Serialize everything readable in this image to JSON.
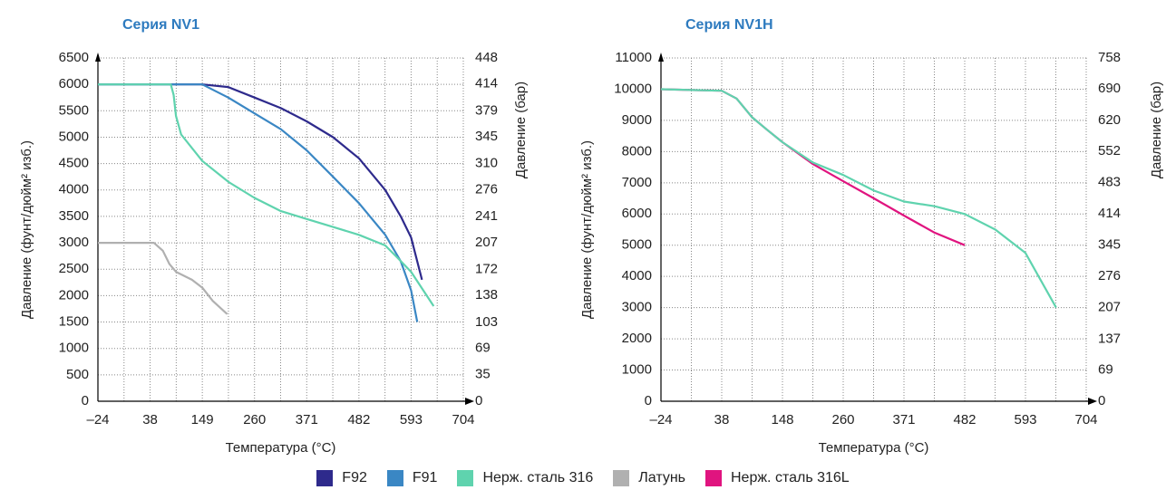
{
  "chart_data": [
    {
      "type": "line",
      "title": "Серия NV1",
      "ylabel": "Давление (фунт/дюйм² изб.)",
      "y2label": "Давление (бар)",
      "xlabel": "Температура (°C)",
      "xlim": [
        -24,
        704
      ],
      "xticks": [
        {
          "value": -24,
          "label": "–24"
        },
        38,
        149,
        260,
        371,
        482,
        593,
        704
      ],
      "ylim": [
        0,
        6500
      ],
      "yticks": [
        0,
        500,
        1000,
        1500,
        2000,
        2500,
        3000,
        3500,
        4000,
        4500,
        5000,
        5500,
        6000,
        6500
      ],
      "y2lim": [
        0,
        448
      ],
      "y2ticks": [
        0,
        35,
        69,
        103,
        138,
        172,
        207,
        241,
        276,
        310,
        345,
        379,
        414,
        448
      ],
      "grid": true,
      "series": [
        {
          "name": "F92",
          "color": "#2e2a8c",
          "x": [
            -24,
            149,
            204,
            260,
            316,
            371,
            427,
            482,
            538,
            571,
            593,
            616
          ],
          "values": [
            6000,
            6000,
            5950,
            5750,
            5550,
            5300,
            5000,
            4600,
            4000,
            3500,
            3100,
            2300
          ]
        },
        {
          "name": "F91",
          "color": "#3a87c4",
          "x": [
            -24,
            149,
            204,
            260,
            316,
            371,
            427,
            482,
            538,
            571,
            593,
            606
          ],
          "values": [
            6000,
            6000,
            5750,
            5450,
            5150,
            4750,
            4250,
            3750,
            3150,
            2650,
            2100,
            1500
          ]
        },
        {
          "name": "Нерж. сталь 316",
          "color": "#5fd3ae",
          "x": [
            -24,
            82,
            88,
            93,
            104,
            149,
            205,
            260,
            316,
            371,
            427,
            482,
            538,
            566,
            593,
            641
          ],
          "values": [
            6000,
            6000,
            5800,
            5400,
            5050,
            4550,
            4150,
            3850,
            3600,
            3450,
            3300,
            3150,
            2950,
            2700,
            2450,
            1800
          ]
        },
        {
          "name": "Латунь",
          "color": "#b0b0b0",
          "x": [
            -24,
            46,
            65,
            79,
            93,
            127,
            149,
            171,
            202
          ],
          "values": [
            3000,
            3000,
            2850,
            2600,
            2450,
            2300,
            2150,
            1900,
            1650
          ]
        }
      ]
    },
    {
      "type": "line",
      "title": "Серия NV1H",
      "ylabel": "Давление (фунт/дюйм² изб.)",
      "y2label": "Давление (бар)",
      "xlabel": "Температура (°C)",
      "xlim": [
        -24,
        704
      ],
      "xticks": [
        {
          "value": -24,
          "label": "–24"
        },
        38,
        148,
        260,
        371,
        482,
        593,
        704
      ],
      "ylim": [
        0,
        11000
      ],
      "yticks": [
        0,
        1000,
        2000,
        3000,
        4000,
        5000,
        6000,
        7000,
        8000,
        9000,
        10000,
        11000
      ],
      "y2lim": [
        0,
        758
      ],
      "y2ticks": [
        0,
        69,
        137,
        207,
        276,
        345,
        414,
        483,
        552,
        620,
        690,
        758
      ],
      "grid": true,
      "series": [
        {
          "name": "Нерж. сталь 316L",
          "color": "#e0147f",
          "x": [
            -24,
            38,
            65,
            93,
            120,
            148,
            204,
            260,
            316,
            371,
            427,
            482
          ],
          "values": [
            10000,
            9950,
            9700,
            9100,
            8700,
            8300,
            7600,
            7050,
            6500,
            5950,
            5400,
            5000
          ]
        },
        {
          "name": "Нерж. сталь 316",
          "color": "#5fd3ae",
          "x": [
            -24,
            38,
            65,
            93,
            120,
            148,
            204,
            260,
            316,
            371,
            427,
            482,
            538,
            593,
            649
          ],
          "values": [
            10000,
            9950,
            9700,
            9100,
            8700,
            8300,
            7650,
            7250,
            6750,
            6400,
            6250,
            6000,
            5500,
            4750,
            3000
          ]
        }
      ]
    }
  ]
}
